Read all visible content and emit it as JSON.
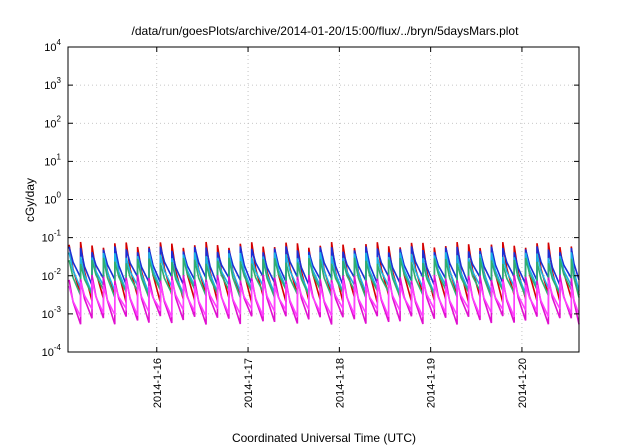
{
  "chart_data": {
    "type": "line",
    "title": "/data/run/goesPlots/archive/2014-01-20/15:00/flux/../bryn/5daysMars.plot",
    "xlabel": "Coordinated Universal Time (UTC)",
    "ylabel": "cGy/day",
    "x_range": [
      "2014-01-15 00:40",
      "2014-01-20 15:00"
    ],
    "x_ticks": [
      "2014-1-16",
      "2014-1-17",
      "2014-1-18",
      "2014-1-19",
      "2014-1-20"
    ],
    "y_scale": "log",
    "ylim": [
      0.0001,
      10000
    ],
    "y_ticks": [
      {
        "base": "10",
        "exp": "-4"
      },
      {
        "base": "10",
        "exp": "-3"
      },
      {
        "base": "10",
        "exp": "-2"
      },
      {
        "base": "10",
        "exp": "-1"
      },
      {
        "base": "10",
        "exp": "0"
      },
      {
        "base": "10",
        "exp": "1"
      },
      {
        "base": "10",
        "exp": "2"
      },
      {
        "base": "10",
        "exp": "3"
      },
      {
        "base": "10",
        "exp": "4"
      }
    ],
    "grid": true,
    "cycle_hours": 3,
    "series": [
      {
        "color": "#d40000",
        "peak": 0.065,
        "trough": 0.0026
      },
      {
        "color": "#1a2fd6",
        "peak": 0.05,
        "trough": 0.0075
      },
      {
        "color": "#1bb3e6",
        "peak": 0.035,
        "trough": 0.0045
      },
      {
        "color": "#2fae6f",
        "peak": 0.025,
        "trough": 0.0035
      },
      {
        "color": "#e010d0",
        "peak": 0.009,
        "trough": 0.0007
      },
      {
        "color": "#ff40ff",
        "peak": 0.0065,
        "trough": 0.0011
      }
    ]
  }
}
